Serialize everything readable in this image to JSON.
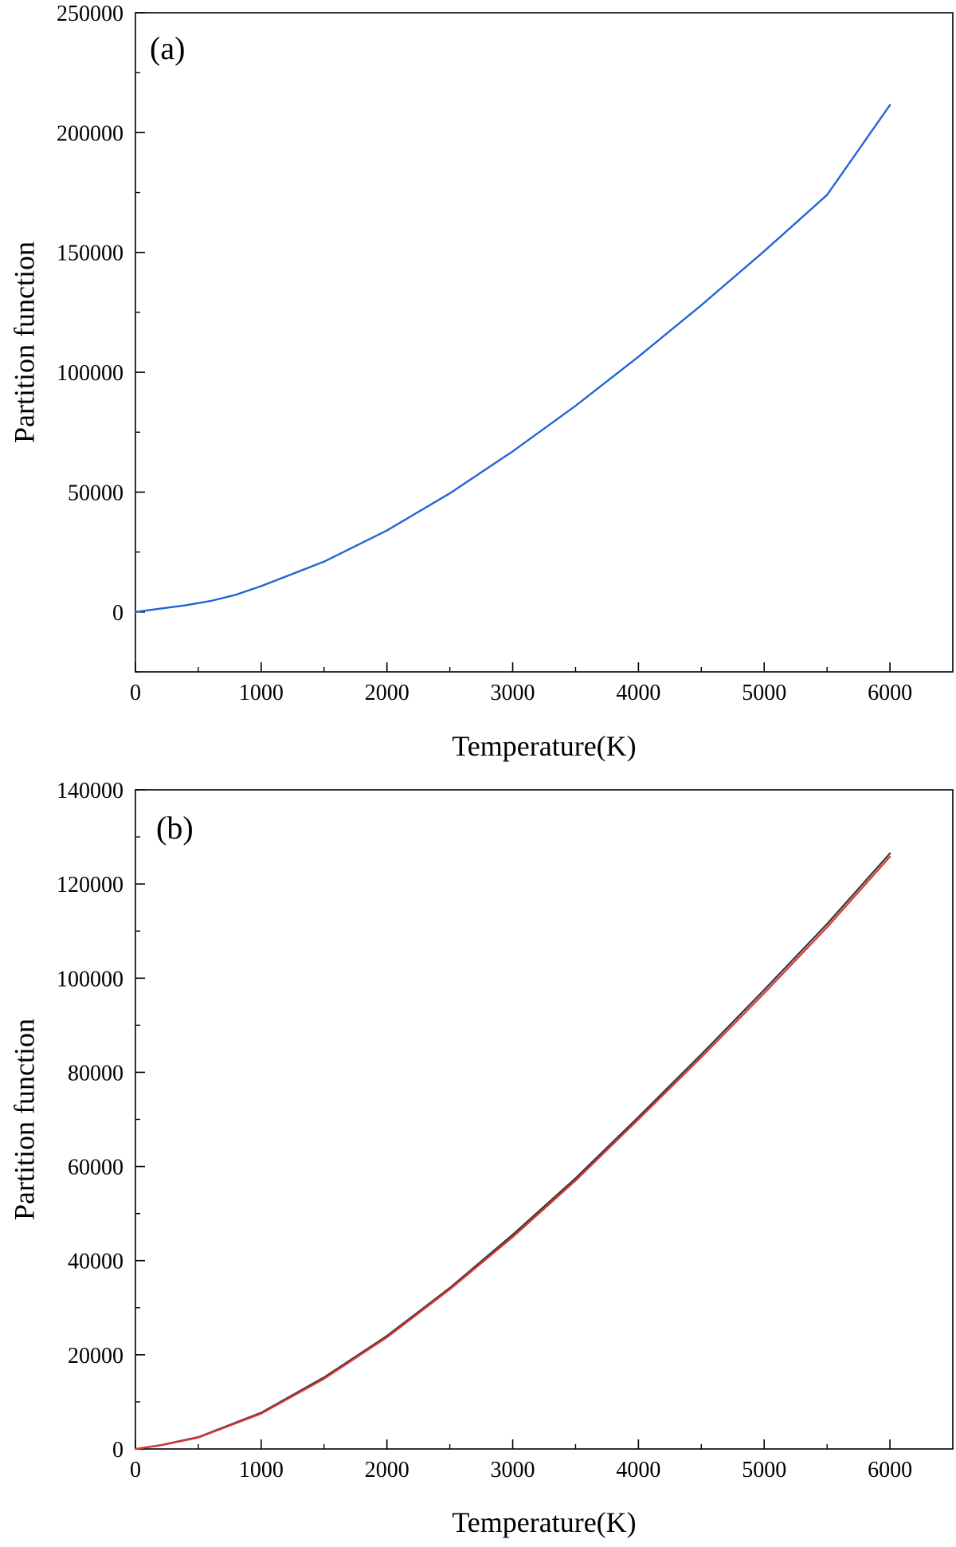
{
  "chart_data": [
    {
      "type": "line",
      "panel_label": "(a)",
      "xlabel": "Temperature(K)",
      "ylabel": "Partition function",
      "xlim": [
        0,
        6500
      ],
      "ylim": [
        -25000,
        250000
      ],
      "xticks": [
        0,
        1000,
        2000,
        3000,
        4000,
        5000,
        6000
      ],
      "yticks": [
        0,
        50000,
        100000,
        150000,
        200000,
        250000
      ],
      "grid": false,
      "series": [
        {
          "color": "#1f66d6",
          "x": [
            0,
            100,
            200,
            400,
            600,
            800,
            1000,
            1500,
            2000,
            2500,
            3000,
            3500,
            4000,
            4500,
            5000,
            5500,
            6000
          ],
          "y": [
            0,
            700,
            1400,
            2800,
            4600,
            7200,
            10800,
            21000,
            34000,
            49500,
            67000,
            86000,
            106500,
            128000,
            150500,
            174000,
            211500
          ]
        }
      ]
    },
    {
      "type": "line",
      "panel_label": "(b)",
      "xlabel": "Temperature(K)",
      "ylabel": "Partition function",
      "xlim": [
        0,
        6500
      ],
      "ylim": [
        0,
        140000
      ],
      "xticks": [
        0,
        1000,
        2000,
        3000,
        4000,
        5000,
        6000
      ],
      "yticks": [
        0,
        20000,
        40000,
        60000,
        80000,
        100000,
        120000,
        140000
      ],
      "grid": false,
      "series": [
        {
          "color": "#3d3d3d",
          "x": [
            0,
            200,
            500,
            1000,
            1500,
            2000,
            2500,
            3000,
            3500,
            4000,
            4500,
            5000,
            5500,
            6000
          ],
          "y": [
            0,
            800,
            2500,
            7700,
            15200,
            24000,
            34200,
            45500,
            57500,
            70500,
            83800,
            97500,
            111500,
            126500
          ]
        },
        {
          "color": "#e03535",
          "x": [
            0,
            200,
            500,
            1000,
            1500,
            2000,
            2500,
            3000,
            3500,
            4000,
            4500,
            5000,
            5500,
            6000
          ],
          "y": [
            0,
            750,
            2400,
            7500,
            14900,
            23700,
            33900,
            45000,
            57000,
            70000,
            83200,
            96800,
            110800,
            125800
          ]
        }
      ]
    }
  ]
}
